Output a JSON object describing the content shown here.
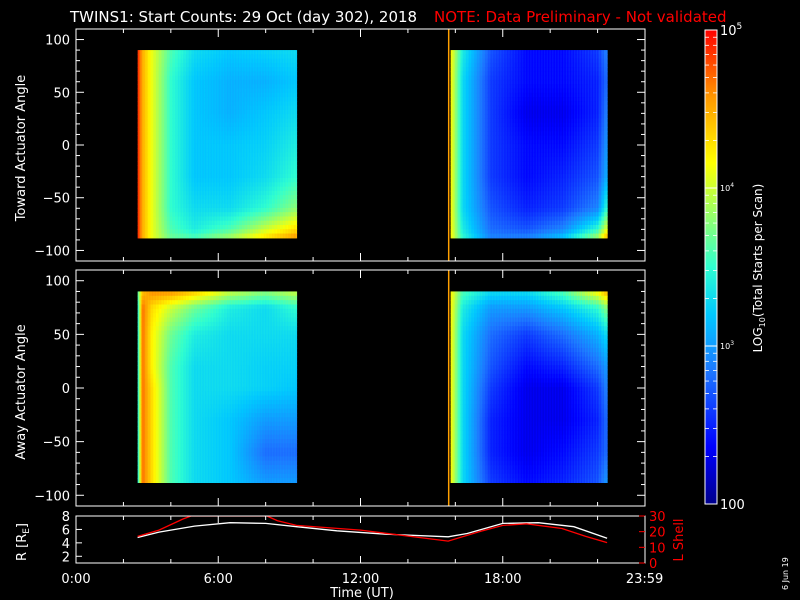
{
  "header": {
    "title": "TWINS1: Start Counts: 29 Oct (day 302), 2018",
    "note": "NOTE: Data Preliminary - Not validated"
  },
  "footer": {
    "stamp": "6 Jun 19"
  },
  "colors": {
    "background": "#000000",
    "axes": "#ffffff",
    "note": "#ff0000",
    "l_shell": "#ff0000",
    "radius": "#ffffff",
    "marker": "#ffa000",
    "spectrogram_scale": [
      "#00008c",
      "#0000ff",
      "#1e78ff",
      "#00c8ff",
      "#30ffd0",
      "#a0ff60",
      "#ffff00",
      "#ff9600",
      "#ff0000"
    ]
  },
  "chart_data": [
    {
      "type": "heatmap",
      "name": "toward",
      "ylabel": "Toward Actuator Angle",
      "ylim": [
        -110,
        110
      ],
      "yticks": [
        100,
        50,
        0,
        -50,
        -100
      ],
      "xlim_hours": [
        0,
        24
      ],
      "coverage_hours": [
        [
          2.6,
          9.3
        ],
        [
          15.8,
          22.4
        ]
      ],
      "angle_range": [
        -88,
        90
      ],
      "marker_hour": 15.72,
      "log10_counts": {
        "x_hours": [
          2.6,
          2.8,
          3.2,
          4.0,
          5.0,
          6.5,
          8.0,
          9.3,
          15.8,
          16.3,
          17.5,
          19.0,
          20.5,
          22.0,
          22.4
        ],
        "angles": [
          90,
          60,
          30,
          0,
          -30,
          -60,
          -80,
          -88
        ],
        "values": [
          [
            4.9,
            4.5,
            4.1,
            3.6,
            3.3,
            3.2,
            3.25,
            3.3,
            4.2,
            3.4,
            2.7,
            2.4,
            2.4,
            2.6,
            2.9
          ],
          [
            4.9,
            4.5,
            4.1,
            3.5,
            3.2,
            3.1,
            3.1,
            3.2,
            4.2,
            3.3,
            2.6,
            2.4,
            2.4,
            2.5,
            2.8
          ],
          [
            4.9,
            4.5,
            4.1,
            3.5,
            3.2,
            3.1,
            3.2,
            3.3,
            4.2,
            3.3,
            2.6,
            2.3,
            2.3,
            2.5,
            2.9
          ],
          [
            4.9,
            4.5,
            4.1,
            3.5,
            3.2,
            3.2,
            3.25,
            3.4,
            4.2,
            3.3,
            2.6,
            2.4,
            2.4,
            2.6,
            3.0
          ],
          [
            4.9,
            4.5,
            4.1,
            3.5,
            3.2,
            3.2,
            3.3,
            3.5,
            4.2,
            3.3,
            2.6,
            2.4,
            2.5,
            2.7,
            3.1
          ],
          [
            4.9,
            4.5,
            4.1,
            3.5,
            3.3,
            3.3,
            3.5,
            3.8,
            4.2,
            3.3,
            2.7,
            2.5,
            2.6,
            2.9,
            3.5
          ],
          [
            4.9,
            4.5,
            4.1,
            3.6,
            3.4,
            3.6,
            4.0,
            4.3,
            4.2,
            3.4,
            2.8,
            2.7,
            2.9,
            3.5,
            4.1
          ],
          [
            4.9,
            4.5,
            4.1,
            3.7,
            3.6,
            3.9,
            4.3,
            4.6,
            4.2,
            3.5,
            2.9,
            2.9,
            3.2,
            3.9,
            4.5
          ]
        ]
      }
    },
    {
      "type": "heatmap",
      "name": "away",
      "ylabel": "Away Actuator Angle",
      "ylim": [
        -110,
        110
      ],
      "yticks": [
        100,
        50,
        0,
        -50,
        -100
      ],
      "xlim_hours": [
        0,
        24
      ],
      "coverage_hours": [
        [
          2.6,
          9.3
        ],
        [
          15.8,
          22.4
        ]
      ],
      "angle_range": [
        -88,
        90
      ],
      "marker_hour": 15.72,
      "log10_counts": {
        "x_hours": [
          2.6,
          2.8,
          3.2,
          4.0,
          5.0,
          6.5,
          8.0,
          9.3,
          15.8,
          16.3,
          17.5,
          19.0,
          20.5,
          22.0,
          22.4
        ],
        "angles": [
          90,
          75,
          50,
          20,
          0,
          -30,
          -60,
          -88
        ],
        "values": [
          [
            3.6,
            4.4,
            4.6,
            4.6,
            4.4,
            4.0,
            3.8,
            4.0,
            4.2,
            3.6,
            3.3,
            3.3,
            3.6,
            4.2,
            4.5
          ],
          [
            3.3,
            4.7,
            4.3,
            4.0,
            3.7,
            3.4,
            3.3,
            3.5,
            4.2,
            3.4,
            3.0,
            3.0,
            3.2,
            3.5,
            3.8
          ],
          [
            3.3,
            4.7,
            4.2,
            3.7,
            3.4,
            3.3,
            3.3,
            3.3,
            4.2,
            3.3,
            2.8,
            2.6,
            2.8,
            3.1,
            3.3
          ],
          [
            3.3,
            4.7,
            4.2,
            3.6,
            3.3,
            3.3,
            3.25,
            3.25,
            4.2,
            3.3,
            2.7,
            2.4,
            2.5,
            2.8,
            3.0
          ],
          [
            3.3,
            4.7,
            4.3,
            3.6,
            3.3,
            3.3,
            3.25,
            3.2,
            4.2,
            3.3,
            2.6,
            2.3,
            2.3,
            2.6,
            2.9
          ],
          [
            3.3,
            4.7,
            4.3,
            3.6,
            3.3,
            3.2,
            3.0,
            3.0,
            4.2,
            3.3,
            2.5,
            2.3,
            2.3,
            2.5,
            2.8
          ],
          [
            3.3,
            4.7,
            4.3,
            3.6,
            3.3,
            3.2,
            2.8,
            2.8,
            4.2,
            3.3,
            2.5,
            2.3,
            2.4,
            2.6,
            2.8
          ],
          [
            3.3,
            4.7,
            4.3,
            3.6,
            3.3,
            3.2,
            3.0,
            3.0,
            4.2,
            3.3,
            2.6,
            2.4,
            2.5,
            2.7,
            3.0
          ]
        ]
      }
    },
    {
      "type": "line",
      "name": "orbit",
      "ylabel_left": "R [R",
      "ylabel_left_sub": "E",
      "ylabel_left_end": "]",
      "ylabel_right": "L Shell",
      "xlabel": "Time (UT)",
      "xlim_hours": [
        0,
        24
      ],
      "xticks": [
        "0:00",
        "6:00",
        "12:00",
        "18:00",
        "23:59"
      ],
      "xtick_hours": [
        0,
        6,
        12,
        18,
        23.983
      ],
      "ylim_left": [
        1,
        8
      ],
      "yticks_left": [
        2,
        4,
        6,
        8
      ],
      "ylim_right": [
        0,
        30
      ],
      "yticks_right": [
        0,
        10,
        20,
        30
      ],
      "series": [
        {
          "axis": "left",
          "x_hours": [
            2.6,
            3.5,
            5.0,
            6.5,
            8.0,
            9.3,
            11.0,
            13.0,
            15.7,
            16.5,
            18.0,
            19.5,
            21.0,
            22.4
          ],
          "values": [
            4.8,
            5.6,
            6.5,
            7.0,
            6.9,
            6.4,
            5.8,
            5.3,
            4.9,
            5.4,
            6.9,
            7.0,
            6.4,
            4.7
          ]
        },
        {
          "axis": "right",
          "x_hours": [
            2.6,
            3.5,
            4.5,
            4.85,
            8.05,
            8.5,
            9.3,
            12.0,
            15.7,
            17.0,
            18.0,
            19.0,
            20.5,
            21.5,
            22.4
          ],
          "values": [
            17,
            21,
            28,
            30,
            30,
            27,
            24,
            21,
            14,
            20,
            24,
            25,
            22,
            17,
            13
          ]
        }
      ]
    },
    {
      "type": "colorbar",
      "label_pre": "LOG",
      "label_sub": "10",
      "label_post": "(Total Starts per Scan)",
      "range_log10": [
        2,
        5
      ],
      "tick_labels": [
        {
          "log10": 5,
          "base": "10",
          "exp": "5",
          "size": "major"
        },
        {
          "log10": 4,
          "base": "10",
          "exp": "4",
          "size": "minor"
        },
        {
          "log10": 3,
          "base": "10",
          "exp": "3",
          "size": "minor"
        },
        {
          "log10": 2,
          "base": "100",
          "exp": "",
          "size": "major"
        }
      ]
    }
  ]
}
